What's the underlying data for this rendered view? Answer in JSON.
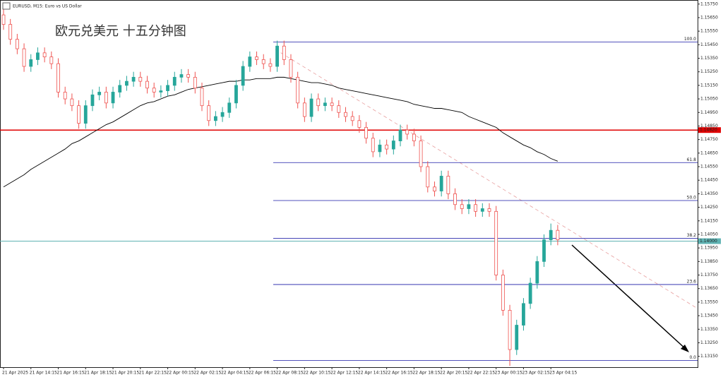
{
  "chart_data": {
    "type": "candlestick",
    "symbol": "EURUSD, M15:  Euro vs US Dollar",
    "title": "欧元兑美元 十五分钟图",
    "categories": [
      "21 Apr 2025",
      null,
      null,
      null,
      "21 Apr 14:15",
      null,
      null,
      null,
      "21 Apr 16:15",
      null,
      null,
      null,
      "21 Apr 18:15",
      null,
      null,
      null,
      "21 Apr 20:15",
      null,
      null,
      null,
      "21 Apr 22:15",
      null,
      null,
      null,
      "22 Apr 00:15",
      null,
      null,
      null,
      "22 Apr 02:15",
      null,
      null,
      null,
      "22 Apr 04:15",
      null,
      null,
      null,
      "22 Apr 06:15",
      null,
      null,
      null,
      "22 Apr 08:15",
      null,
      null,
      null,
      "22 Apr 10:15",
      null,
      null,
      null,
      "22 Apr 12:15",
      null,
      null,
      null,
      "22 Apr 14:15",
      null,
      null,
      null,
      "22 Apr 16:15",
      null,
      null,
      null,
      "22 Apr 18:15",
      null,
      null,
      null,
      "22 Apr 20:15",
      null,
      null,
      null,
      "22 Apr 22:15",
      null,
      null,
      null,
      "23 Apr 00:15",
      null,
      null,
      null,
      "23 Apr 02:15",
      null,
      null,
      null,
      "23 Apr 04:15",
      null
    ],
    "open": [
      1.1567,
      1.156,
      1.1549,
      1.1542,
      1.1529,
      1.1534,
      1.1539,
      1.1536,
      1.1531,
      1.151,
      1.1505,
      1.15,
      1.1487,
      1.15,
      1.1508,
      1.151,
      1.1502,
      1.151,
      1.1515,
      1.1518,
      1.1521,
      1.1518,
      1.1513,
      1.151,
      1.1511,
      1.1515,
      1.1521,
      1.1523,
      1.1521,
      1.1513,
      1.15,
      1.1489,
      1.1492,
      1.1495,
      1.1502,
      1.1515,
      1.1529,
      1.1536,
      1.1534,
      1.1531,
      1.1529,
      1.1544,
      1.1534,
      1.1521,
      1.1502,
      1.1492,
      1.1505,
      1.15,
      1.1502,
      1.15,
      1.1495,
      1.1492,
      1.1489,
      1.1484,
      1.1476,
      1.1466,
      1.1471,
      1.1468,
      1.1474,
      1.1482,
      1.1479,
      1.1474,
      1.1455,
      1.144,
      1.1437,
      1.1448,
      1.1435,
      1.1427,
      1.1424,
      1.1427,
      1.1422,
      1.1424,
      1.1422,
      1.1375,
      1.1349,
      1.132,
      1.1338,
      1.1354,
      1.1369,
      1.1385,
      1.1401,
      1.1408
    ],
    "high": [
      1.1571,
      1.1564,
      1.1553,
      1.1546,
      1.1538,
      1.1543,
      1.1543,
      1.154,
      1.1535,
      1.1514,
      1.1509,
      1.1504,
      1.1504,
      1.1512,
      1.1514,
      1.1514,
      1.1514,
      1.1519,
      1.1522,
      1.1525,
      1.1525,
      1.1522,
      1.1517,
      1.1515,
      1.1519,
      1.1525,
      1.1527,
      1.1527,
      1.1525,
      1.1517,
      1.1504,
      1.1496,
      1.1499,
      1.1506,
      1.1519,
      1.1533,
      1.154,
      1.154,
      1.1538,
      1.1535,
      1.1548,
      1.1548,
      1.1538,
      1.1525,
      1.1506,
      1.1509,
      1.1509,
      1.1506,
      1.1506,
      1.1504,
      1.1499,
      1.1496,
      1.1493,
      1.1488,
      1.148,
      1.1475,
      1.1475,
      1.1478,
      1.1486,
      1.1486,
      1.1483,
      1.1478,
      1.1459,
      1.1444,
      1.1452,
      1.1452,
      1.1439,
      1.1431,
      1.1431,
      1.1431,
      1.1428,
      1.1428,
      1.1426,
      1.1379,
      1.1353,
      1.1342,
      1.1358,
      1.1373,
      1.1389,
      1.1405,
      1.1413,
      1.1412
    ],
    "low": [
      1.1556,
      1.1545,
      1.1538,
      1.1525,
      1.1525,
      1.153,
      1.1532,
      1.1527,
      1.1506,
      1.1501,
      1.1496,
      1.1483,
      1.1483,
      1.1496,
      1.1504,
      1.1498,
      1.1498,
      1.1506,
      1.1511,
      1.1514,
      1.1514,
      1.1509,
      1.1506,
      1.1506,
      1.1507,
      1.1511,
      1.1517,
      1.1517,
      1.1509,
      1.1496,
      1.1485,
      1.1485,
      1.1488,
      1.1491,
      1.1498,
      1.1511,
      1.1525,
      1.153,
      1.1527,
      1.1525,
      1.1525,
      1.153,
      1.1517,
      1.1498,
      1.1488,
      1.1488,
      1.1496,
      1.1496,
      1.1496,
      1.1491,
      1.1488,
      1.1485,
      1.148,
      1.1472,
      1.1462,
      1.1462,
      1.1464,
      1.1464,
      1.147,
      1.1475,
      1.147,
      1.1451,
      1.1436,
      1.1433,
      1.1433,
      1.1431,
      1.1423,
      1.142,
      1.142,
      1.1418,
      1.1418,
      1.1418,
      1.1371,
      1.1345,
      1.1308,
      1.1316,
      1.1334,
      1.135,
      1.1365,
      1.1381,
      1.1397,
      1.1397
    ],
    "close": [
      1.156,
      1.1549,
      1.1542,
      1.1529,
      1.1534,
      1.1539,
      1.1536,
      1.1531,
      1.151,
      1.1505,
      1.15,
      1.1487,
      1.15,
      1.1508,
      1.151,
      1.1502,
      1.151,
      1.1515,
      1.1518,
      1.1521,
      1.1518,
      1.1513,
      1.151,
      1.1511,
      1.1515,
      1.1521,
      1.1523,
      1.1521,
      1.1513,
      1.15,
      1.1489,
      1.1492,
      1.1495,
      1.1502,
      1.1515,
      1.1529,
      1.1536,
      1.1534,
      1.1531,
      1.1529,
      1.1544,
      1.1534,
      1.1521,
      1.1502,
      1.1492,
      1.1505,
      1.15,
      1.1502,
      1.15,
      1.1495,
      1.1492,
      1.1489,
      1.1484,
      1.1476,
      1.1466,
      1.1471,
      1.1468,
      1.1474,
      1.1482,
      1.1479,
      1.1474,
      1.1455,
      1.144,
      1.1437,
      1.1448,
      1.1435,
      1.1427,
      1.1424,
      1.1427,
      1.1422,
      1.1424,
      1.1422,
      1.1375,
      1.1349,
      1.132,
      1.1338,
      1.1354,
      1.1369,
      1.1385,
      1.1401,
      1.1408,
      1.1401
    ],
    "ma": [
      1.144,
      1.1443,
      1.1446,
      1.1449,
      1.1453,
      1.1456,
      1.1459,
      1.1462,
      1.1465,
      1.1468,
      1.1472,
      1.1474,
      1.1477,
      1.148,
      1.1483,
      1.1486,
      1.1488,
      1.1491,
      1.1494,
      1.1497,
      1.15,
      1.1502,
      1.1503,
      1.1505,
      1.1507,
      1.1508,
      1.151,
      1.1512,
      1.1513,
      1.1514,
      1.1515,
      1.1516,
      1.1517,
      1.1518,
      1.1518,
      1.1519,
      1.1519,
      1.152,
      1.152,
      1.152,
      1.1521,
      1.1521,
      1.152,
      1.1519,
      1.1518,
      1.1517,
      1.1517,
      1.1516,
      1.1515,
      1.1513,
      1.1512,
      1.1511,
      1.151,
      1.1509,
      1.1508,
      1.1507,
      1.1506,
      1.1505,
      1.1504,
      1.1503,
      1.1501,
      1.15,
      1.1499,
      1.1498,
      1.1498,
      1.1497,
      1.1496,
      1.1495,
      1.1492,
      1.149,
      1.1488,
      1.1486,
      1.1484,
      1.148,
      1.1477,
      1.1474,
      1.1471,
      1.1469,
      1.1466,
      1.1464,
      1.1461,
      1.1459
    ],
    "up_color": "#26a69a",
    "down_color": "#ef5350",
    "ma_color": "#000000",
    "ylim": [
      1.1307,
      1.1578
    ],
    "yticks": [
      {
        "value": 1.1315,
        "label": "1.13150"
      },
      {
        "value": 1.1325,
        "label": "1.13250"
      },
      {
        "value": 1.1335,
        "label": "1.13350"
      },
      {
        "value": 1.1345,
        "label": "1.13450"
      },
      {
        "value": 1.1355,
        "label": "1.13550"
      },
      {
        "value": 1.1365,
        "label": "1.13650"
      },
      {
        "value": 1.1375,
        "label": "1.13750"
      },
      {
        "value": 1.1385,
        "label": "1.13850"
      },
      {
        "value": 1.1395,
        "label": "1.13950"
      },
      {
        "value": 1.1405,
        "label": "1.14050"
      },
      {
        "value": 1.1415,
        "label": "1.14150"
      },
      {
        "value": 1.1425,
        "label": "1.14250"
      },
      {
        "value": 1.1435,
        "label": "1.14350"
      },
      {
        "value": 1.1445,
        "label": "1.14450"
      },
      {
        "value": 1.1455,
        "label": "1.14550"
      },
      {
        "value": 1.1465,
        "label": "1.14650"
      },
      {
        "value": 1.1475,
        "label": "1.14750"
      },
      {
        "value": 1.1485,
        "label": "1.14850"
      },
      {
        "value": 1.1495,
        "label": "1.14950"
      },
      {
        "value": 1.1505,
        "label": "1.15050"
      },
      {
        "value": 1.1515,
        "label": "1.15150"
      },
      {
        "value": 1.1525,
        "label": "1.15250"
      },
      {
        "value": 1.1535,
        "label": "1.15350"
      },
      {
        "value": 1.1545,
        "label": "1.15450"
      },
      {
        "value": 1.1555,
        "label": "1.15550"
      },
      {
        "value": 1.1565,
        "label": "1.15650"
      },
      {
        "value": 1.1575,
        "label": "1.15750"
      }
    ],
    "fib_levels": [
      {
        "value": 1.1547,
        "label": "100.0"
      },
      {
        "value": 1.1458,
        "label": "61.8"
      },
      {
        "value": 1.143,
        "label": "50.0"
      },
      {
        "value": 1.1402,
        "label": "38.2"
      },
      {
        "value": 1.1368,
        "label": "23.6"
      },
      {
        "value": 1.1312,
        "label": "0.0"
      }
    ],
    "fib_color": "#1a1aa6",
    "level_line": {
      "value": 1.1482,
      "label": "1.14820",
      "color": "#e00000"
    },
    "bid_line": {
      "value": 1.14,
      "label": "1.14000",
      "color": "#5fb3b3"
    }
  }
}
